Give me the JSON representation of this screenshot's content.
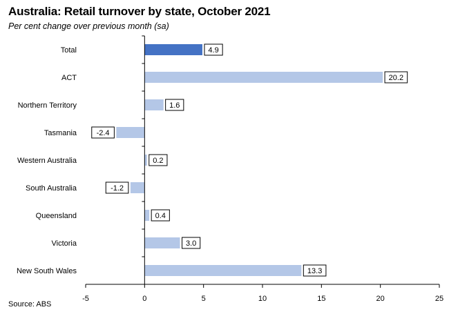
{
  "chart_data": {
    "type": "bar",
    "orientation": "horizontal",
    "title": "Australia: Retail turnover by state, October 2021",
    "subtitle": "Per cent change over previous month (sa)",
    "source": "Source: ABS",
    "categories": [
      "Total",
      "ACT",
      "Northern Territory",
      "Tasmania",
      "Western Australia",
      "South Australia",
      "Queensland",
      "Victoria",
      "New South Wales"
    ],
    "values": [
      4.9,
      20.2,
      1.6,
      -2.4,
      0.2,
      -1.2,
      0.4,
      3.0,
      13.3
    ],
    "value_labels": [
      "4.9",
      "20.2",
      "1.6",
      "-2.4",
      "0.2",
      "-1.2",
      "0.4",
      "3.0",
      "13.3"
    ],
    "xlim": [
      -5,
      25
    ],
    "xticks": [
      -5,
      0,
      5,
      10,
      15,
      20,
      25
    ],
    "grid": false,
    "legend": "none",
    "colors": {
      "highlight": "#4472C4",
      "default": "#B4C7E7",
      "axis": "#000000"
    }
  }
}
